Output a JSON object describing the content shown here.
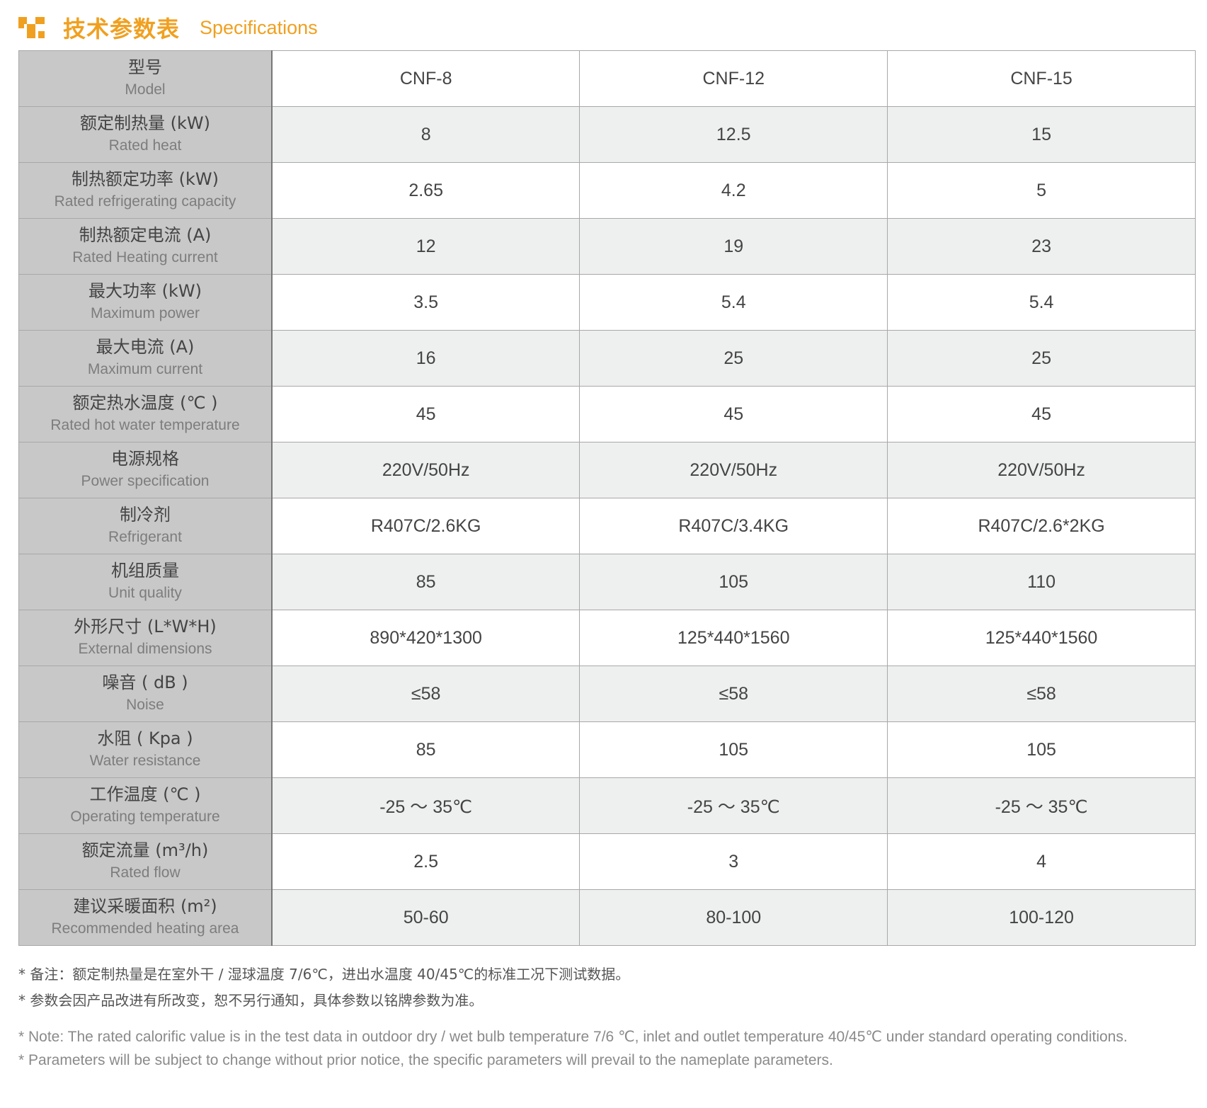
{
  "header": {
    "title_cn": "技术参数表",
    "title_en": "Specifications",
    "accent_color": "#f0a020",
    "icon": "checker-squares-icon"
  },
  "table": {
    "header": {
      "cn": "型号",
      "en": "Model",
      "models": [
        "CNF-8",
        "CNF-12",
        "CNF-15"
      ]
    },
    "rows": [
      {
        "cn": "额定制热量 (kW)",
        "en": "Rated heat",
        "values": [
          "8",
          "12.5",
          "15"
        ]
      },
      {
        "cn": "制热额定功率 (kW)",
        "en": "Rated refrigerating capacity",
        "values": [
          "2.65",
          "4.2",
          "5"
        ]
      },
      {
        "cn": "制热额定电流 (A)",
        "en": "Rated Heating current",
        "values": [
          "12",
          "19",
          "23"
        ]
      },
      {
        "cn": "最大功率 (kW)",
        "en": "Maximum power",
        "values": [
          "3.5",
          "5.4",
          "5.4"
        ]
      },
      {
        "cn": "最大电流 (A)",
        "en": "Maximum current",
        "values": [
          "16",
          "25",
          "25"
        ]
      },
      {
        "cn": "额定热水温度 (℃ )",
        "en": "Rated hot water temperature",
        "values": [
          "45",
          "45",
          "45"
        ]
      },
      {
        "cn": "电源规格",
        "en": "Power specification",
        "values": [
          "220V/50Hz",
          "220V/50Hz",
          "220V/50Hz"
        ]
      },
      {
        "cn": "制冷剂",
        "en": "Refrigerant",
        "values": [
          "R407C/2.6KG",
          "R407C/3.4KG",
          "R407C/2.6*2KG"
        ]
      },
      {
        "cn": "机组质量",
        "en": "Unit quality",
        "values": [
          "85",
          "105",
          "110"
        ]
      },
      {
        "cn": "外形尺寸 (L*W*H)",
        "en": "External dimensions",
        "values": [
          "890*420*1300",
          "125*440*1560",
          "125*440*1560"
        ]
      },
      {
        "cn": "噪音 ( dB )",
        "en": "Noise",
        "values": [
          "≤58",
          "≤58",
          "≤58"
        ]
      },
      {
        "cn": "水阻 ( Kpa )",
        "en": "Water resistance",
        "values": [
          "85",
          "105",
          "105"
        ]
      },
      {
        "cn": "工作温度 (℃ )",
        "en": "Operating temperature",
        "values": [
          "-25 ～ 35℃",
          "-25 ～ 35℃",
          "-25 ～ 35℃"
        ]
      },
      {
        "cn": "额定流量 (m³/h)",
        "en": "Rated flow",
        "values": [
          "2.5",
          "3",
          "4"
        ]
      },
      {
        "cn": "建议采暖面积 (m²)",
        "en": "Recommended heating area",
        "values": [
          "50-60",
          "80-100",
          "100-120"
        ]
      }
    ]
  },
  "notes": {
    "cn": [
      "* 备注：额定制热量是在室外干 / 湿球温度 7/6℃，进出水温度 40/45℃的标准工况下测试数据。",
      "* 参数会因产品改进有所改变，恕不另行通知，具体参数以铭牌参数为准。"
    ],
    "en": [
      "* Note: The rated calorific value is in the test data in outdoor dry / wet bulb temperature 7/6 ℃, inlet and outlet temperature 40/45℃ under standard operating conditions.",
      "* Parameters will be subject to change without prior notice, the specific parameters will prevail to the nameplate parameters."
    ]
  }
}
